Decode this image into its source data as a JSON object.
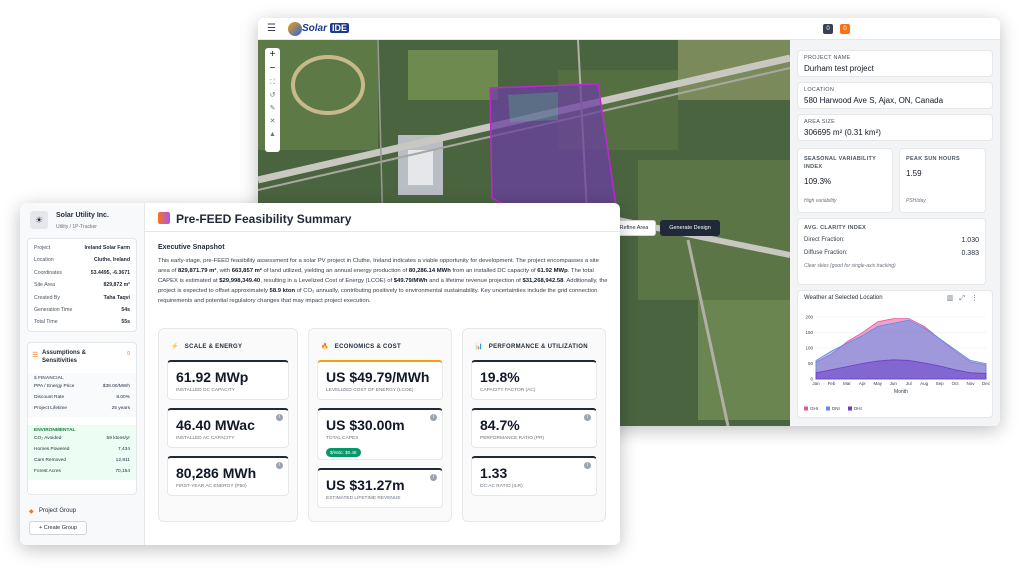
{
  "header": {
    "logo_text": "Solar",
    "logo_badge": "IDE",
    "badges": [
      "0",
      "0"
    ]
  },
  "map": {
    "zoom_in": "+",
    "zoom_out": "−",
    "refine_button": "Refine Area",
    "generate_button": "Generate Design"
  },
  "project_panel": {
    "fields": [
      {
        "label": "PROJECT NAME",
        "value": "Durham test project"
      },
      {
        "label": "LOCATION",
        "value": "580 Harwood Ave S, Ajax, ON, Canada"
      },
      {
        "label": "AREA SIZE",
        "value": "306695 m² (0.31 km²)"
      }
    ],
    "seasonal": {
      "label": "SEASONAL VARIABILITY INDEX",
      "value": "109.3%",
      "note": "High variability"
    },
    "peak_sun": {
      "label": "PEAK SUN HOURS",
      "value": "1.59",
      "note": "PSH/day"
    },
    "clarity": {
      "label": "AVG. CLARITY INDEX",
      "rows": [
        {
          "label": "Direct Fraction:",
          "value": "1.030"
        },
        {
          "label": "Diffuse Fraction:",
          "value": "0.383"
        }
      ],
      "note": "Clear skies (good for single-axis tracking)"
    }
  },
  "chart_data": {
    "type": "area",
    "title": "Weather at Selected Location",
    "x_label": "Month",
    "categories": [
      "Jan",
      "Feb",
      "Mar",
      "Apr",
      "May",
      "Jun",
      "Jul",
      "Aug",
      "Sep",
      "Oct",
      "Nov",
      "Dec"
    ],
    "series": [
      {
        "name": "GHI",
        "color": "#e8559f",
        "values": [
          55,
          80,
          120,
          150,
          185,
          195,
          195,
          170,
          130,
          90,
          55,
          45
        ]
      },
      {
        "name": "DNI",
        "color": "#5b8fe8",
        "values": [
          60,
          90,
          115,
          140,
          170,
          180,
          190,
          165,
          130,
          95,
          60,
          50
        ]
      },
      {
        "name": "DHI",
        "color": "#6a3fc8",
        "values": [
          20,
          30,
          40,
          50,
          58,
          62,
          60,
          52,
          42,
          30,
          20,
          18
        ]
      }
    ],
    "ylim": [
      0,
      210
    ],
    "yticks": [
      0,
      50,
      100,
      150,
      200
    ],
    "legend": "bottom-left"
  },
  "sidebar": {
    "company": "Solar Utility Inc.",
    "company_sub": "Utility / 1P-Tracker",
    "info": [
      [
        "Project",
        "Ireland Solar Farm"
      ],
      [
        "Location",
        "Cluthe, Ireland"
      ],
      [
        "Coordinates",
        "53.4495, -6.3671"
      ],
      [
        "Site Area",
        "829,872 m²"
      ],
      [
        "Created By",
        "Taha Taqvi"
      ],
      [
        "Generation Time",
        "54s"
      ],
      [
        "Total Time",
        "55s"
      ]
    ],
    "assumptions_title": "Assumptions & Sensitivities",
    "assumptions_badge": "0",
    "financial_title": "$ FINANCIAL",
    "financial": [
      [
        "PPA / Energy Price",
        "$38.00/MWh"
      ],
      [
        "Discount Rate",
        "8.00%"
      ],
      [
        "Project Lifetime",
        "25 years"
      ]
    ],
    "environmental_title": "ENVIRONMENTAL",
    "environmental": [
      [
        "CO₂ Avoided",
        "59 ktons/yr"
      ],
      [
        "Homes Powered",
        "7,434"
      ],
      [
        "Cars Removed",
        "12,811"
      ],
      [
        "Forest Acres",
        "70,154"
      ]
    ],
    "group_title": "Project Group",
    "group_button": "+ Create Group"
  },
  "summary": {
    "title": "Pre-FEED Feasibility Summary",
    "heading": "Executive Snapshot",
    "paragraph": [
      {
        "text": "This early-stage, pre-FEED feasibility assessment for a solar PV project in Cluthe, Ireland indicates a viable opportunity for development. The project encompasses a site area of ",
        "bold": false
      },
      {
        "text": "829,871.79 m²",
        "bold": true
      },
      {
        "text": ", with ",
        "bold": false
      },
      {
        "text": "663,857 m²",
        "bold": true
      },
      {
        "text": " of land utilized, yielding an annual energy production of ",
        "bold": false
      },
      {
        "text": "80,286.14 MWh",
        "bold": true
      },
      {
        "text": " from an installed DC capacity of ",
        "bold": false
      },
      {
        "text": "61.92 MWp",
        "bold": true
      },
      {
        "text": ". The total CAPEX is estimated at ",
        "bold": false
      },
      {
        "text": "$29,998,349.40",
        "bold": true
      },
      {
        "text": ", resulting in a Levelized Cost of Energy (LCOE) of ",
        "bold": false
      },
      {
        "text": "$49.79/MWh",
        "bold": true
      },
      {
        "text": " and a lifetime revenue projection of ",
        "bold": false
      },
      {
        "text": "$31,268,942.58",
        "bold": true
      },
      {
        "text": ". Additionally, the project is expected to offset approximately ",
        "bold": false
      },
      {
        "text": "58.9 kton",
        "bold": true
      },
      {
        "text": " of CO₂ annually, contributing positively to environmental sustainability. Key uncertainties include the grid connection requirements and potential regulatory changes that may impact project execution.",
        "bold": false
      }
    ],
    "columns": [
      {
        "title": "SCALE & ENERGY",
        "icon": "⚡",
        "cards": [
          {
            "value": "61.92 MWp",
            "label": "INSTALLED DC CAPACITY"
          },
          {
            "value": "46.40 MWac",
            "label": "INSTALLED AC CAPACITY"
          },
          {
            "value": "80,286 MWh",
            "label": "FIRST-YEAR AC ENERGY (P50)"
          }
        ]
      },
      {
        "title": "ECONOMICS & COST",
        "icon": "🔥",
        "cards": [
          {
            "value": "US $49.79/MWh",
            "label": "LEVELIZED COST OF ENERGY (LCOE)"
          },
          {
            "value": "US $30.00m",
            "label": "TOTAL CAPEX",
            "badge": "$/Wdc: $0.48"
          },
          {
            "value": "US $31.27m",
            "label": "ESTIMATED LIFETIME REVENUE"
          }
        ]
      },
      {
        "title": "PERFORMANCE & UTILIZATION",
        "icon": "📊",
        "cards": [
          {
            "value": "19.8%",
            "label": "CAPACITY FACTOR (AC)"
          },
          {
            "value": "84.7%",
            "label": "PERFORMANCE RATIO (PR)"
          },
          {
            "value": "1.33",
            "label": "DC:AC RATIO (ILR)"
          }
        ]
      }
    ]
  }
}
